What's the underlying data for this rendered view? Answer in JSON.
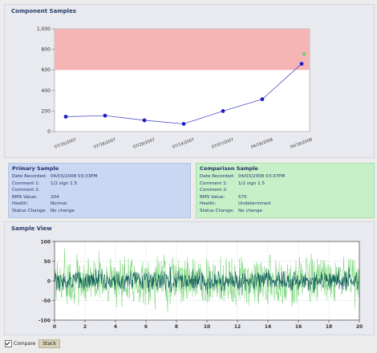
{
  "trend": {
    "title": "Component Samples",
    "chart_data": {
      "type": "line",
      "y_ticks": [
        "1,000",
        "800",
        "600",
        "400",
        "200",
        "0"
      ],
      "ylim": [
        0,
        1000
      ],
      "x_labels": [
        "07/16/2007",
        "07/18/2007",
        "07/28/2007",
        "07/14/2007",
        "07/07/2007",
        "04/18/2008",
        "04/18/2008"
      ],
      "values": [
        145,
        155,
        110,
        75,
        200,
        315,
        660
      ],
      "alarm_band": [
        600,
        1000
      ],
      "colors": {
        "line": "#5050c8",
        "marker": "#1e1ec8",
        "alarm": "#f6b5b5",
        "last_marker": "#6fcf6f"
      }
    }
  },
  "primary": {
    "title": "Primary Sample",
    "rows": [
      {
        "k": "Date Recorded:",
        "v": "04/03/2008 03:33PM"
      },
      {
        "k": "Comment 1:",
        "v": "1/2 sign 1.5"
      },
      {
        "k": "Comment 2:",
        "v": ""
      },
      {
        "k": "RMS Value:",
        "v": "204"
      },
      {
        "k": "Health:",
        "v": "Normal"
      },
      {
        "k": "Status Change:",
        "v": "No change"
      }
    ]
  },
  "comparison": {
    "title": "Comparison Sample",
    "rows": [
      {
        "k": "Date Recorded:",
        "v": "04/03/2008 03:37PM"
      },
      {
        "k": "Comment 1:",
        "v": "1/2 sign 1.5"
      },
      {
        "k": "Comment 2:",
        "v": ""
      },
      {
        "k": "RMS Value:",
        "v": "570"
      },
      {
        "k": "Health:",
        "v": "Undetermined"
      },
      {
        "k": "Status Change:",
        "v": "No change"
      }
    ]
  },
  "view": {
    "title": "Sample View",
    "chart_data": {
      "type": "line",
      "y_ticks": [
        "100",
        "50",
        "0",
        "-50",
        "-100"
      ],
      "ylim": [
        -100,
        100
      ],
      "x_ticks": [
        "0",
        "2",
        "4",
        "6",
        "8",
        "10",
        "12",
        "14",
        "16",
        "18",
        "20"
      ],
      "xlim": [
        0,
        20
      ],
      "series": [
        {
          "amplitude": 85,
          "color": "#7fd67f"
        },
        {
          "amplitude": 35,
          "color": "#0f5b5b"
        }
      ]
    }
  },
  "controls": {
    "compare_label": "Compare",
    "stack_label": "Stack"
  }
}
